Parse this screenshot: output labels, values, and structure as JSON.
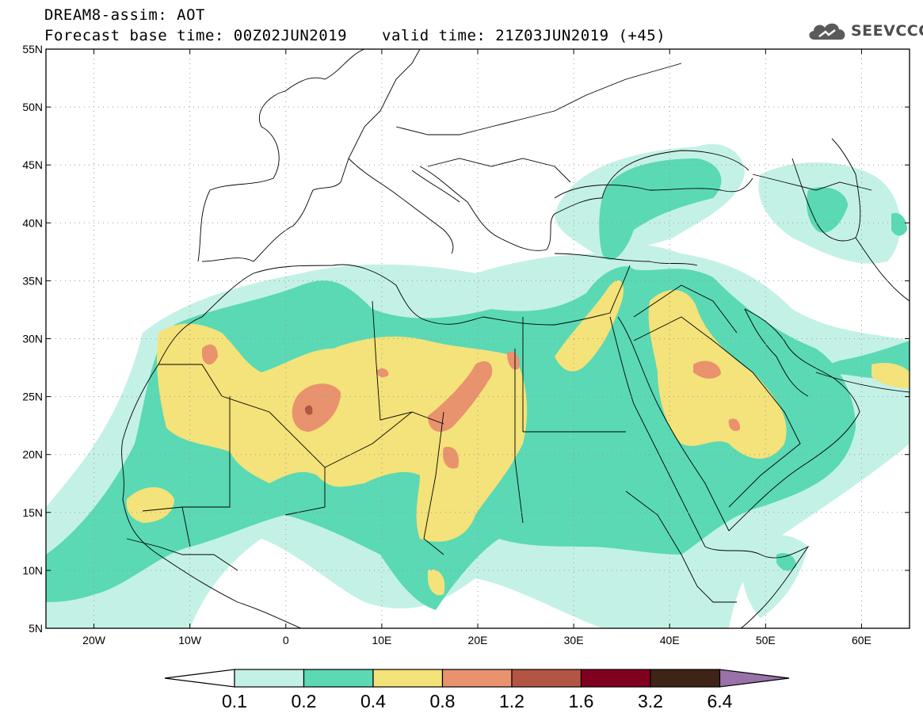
{
  "header": {
    "title": "DREAM8-assim: AOT",
    "base_time": "Forecast base time: 00Z02JUN2019",
    "valid_time": "valid time: 21Z03JUN2019 (+45)",
    "logo_text": "SEEVCCC"
  },
  "map": {
    "projection": "lat-lon",
    "lon_range": [
      -25,
      65
    ],
    "lat_range": [
      5,
      55
    ],
    "lat_ticks": [
      {
        "value": 55,
        "label": "55N"
      },
      {
        "value": 50,
        "label": "50N"
      },
      {
        "value": 45,
        "label": "45N"
      },
      {
        "value": 40,
        "label": "40N"
      },
      {
        "value": 35,
        "label": "35N"
      },
      {
        "value": 30,
        "label": "30N"
      },
      {
        "value": 25,
        "label": "25N"
      },
      {
        "value": 20,
        "label": "20N"
      },
      {
        "value": 15,
        "label": "15N"
      },
      {
        "value": 10,
        "label": "10N"
      },
      {
        "value": 5,
        "label": "5N"
      }
    ],
    "lon_ticks": [
      {
        "value": -20,
        "label": "20W"
      },
      {
        "value": -10,
        "label": "10W"
      },
      {
        "value": 0,
        "label": "0"
      },
      {
        "value": 10,
        "label": "10E"
      },
      {
        "value": 20,
        "label": "20E"
      },
      {
        "value": 30,
        "label": "30E"
      },
      {
        "value": 40,
        "label": "40E"
      },
      {
        "value": 50,
        "label": "50E"
      },
      {
        "value": 60,
        "label": "60E"
      }
    ],
    "grid": "dotted"
  },
  "colorbar": {
    "labels": [
      "0.1",
      "0.2",
      "0.4",
      "0.8",
      "1.2",
      "1.6",
      "3.2",
      "6.4"
    ],
    "colors": [
      "#c4f1e6",
      "#5ad9b4",
      "#f4e27a",
      "#e8926e",
      "#b35545",
      "#800020",
      "#3d2416"
    ],
    "under_color": "#ffffff",
    "over_color": "#9872a8"
  },
  "aot_colors": {
    "c1": "#c4f1e6",
    "c2": "#5ad9b4",
    "c3": "#f4e27a",
    "c4": "#e8926e",
    "c5": "#b35545"
  },
  "land_color": "#ffffff",
  "sea_color": "#ffffff",
  "border_color": "#000000"
}
